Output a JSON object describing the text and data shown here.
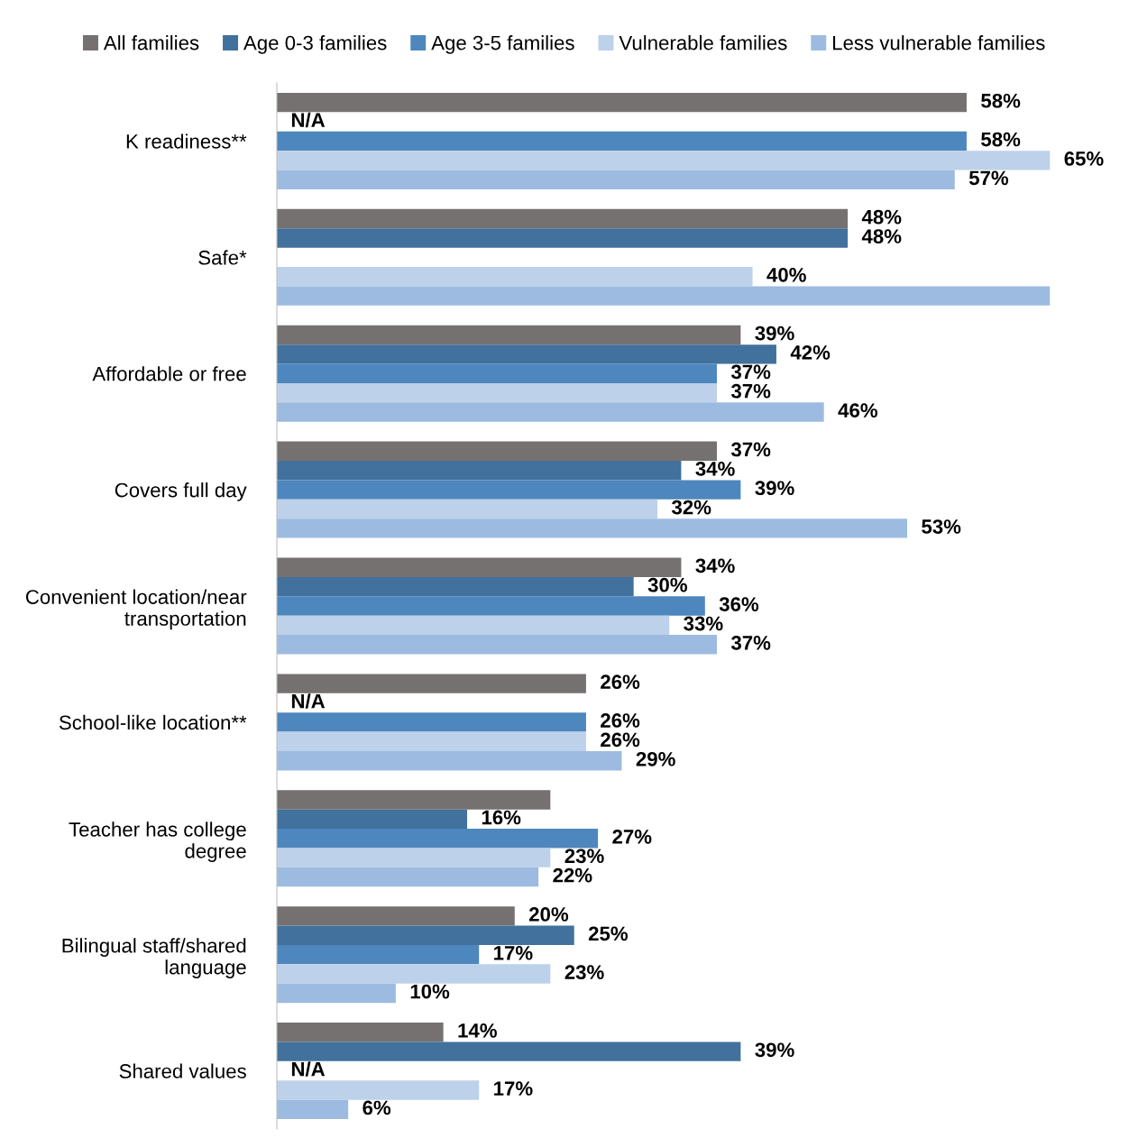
{
  "chart_data": {
    "type": "bar",
    "orientation": "horizontal",
    "legend": "top",
    "grid": false,
    "categories": [
      "K readiness**",
      "Safe*",
      "Affordable or free",
      "Covers full day",
      "Convenient location/near\ntransportation",
      "School-like location**",
      "Teacher has college\ndegree",
      "Bilingual staff/shared\nlanguage",
      "Shared values"
    ],
    "series": [
      {
        "name": "All families",
        "color": "#767171",
        "values": [
          58,
          48,
          39,
          37,
          34,
          26,
          23,
          20,
          14
        ],
        "value_labels": [
          "58%",
          "48%",
          "39%",
          "37%",
          "34%",
          "26%",
          null,
          "20%",
          "14%"
        ]
      },
      {
        "name": "Age 0-3 families",
        "color": "#41719c",
        "values": [
          null,
          48,
          42,
          34,
          30,
          null,
          16,
          25,
          39
        ],
        "value_labels": [
          "N/A",
          "48%",
          "42%",
          "34%",
          "30%",
          "N/A",
          "16%",
          "25%",
          "39%"
        ]
      },
      {
        "name": "Age 3-5 families",
        "color": "#4e87bd",
        "values": [
          58,
          null,
          37,
          39,
          36,
          26,
          27,
          17,
          null
        ],
        "value_labels": [
          "58%",
          null,
          "37%",
          "39%",
          "36%",
          "26%",
          "27%",
          "17%",
          "N/A"
        ]
      },
      {
        "name": "Vulnerable families",
        "color": "#bdd1ea",
        "values": [
          65,
          40,
          37,
          32,
          33,
          26,
          23,
          23,
          17
        ],
        "value_labels": [
          "65%",
          "40%",
          "37%",
          "32%",
          "33%",
          "26%",
          "23%",
          "23%",
          "17%"
        ]
      },
      {
        "name": "Less vulnerable families",
        "color": "#9dbbe0",
        "values": [
          57,
          65,
          46,
          53,
          37,
          29,
          22,
          10,
          6
        ],
        "value_labels": [
          "57%",
          null,
          "46%",
          "53%",
          "37%",
          "29%",
          "22%",
          "10%",
          "6%"
        ]
      }
    ]
  }
}
